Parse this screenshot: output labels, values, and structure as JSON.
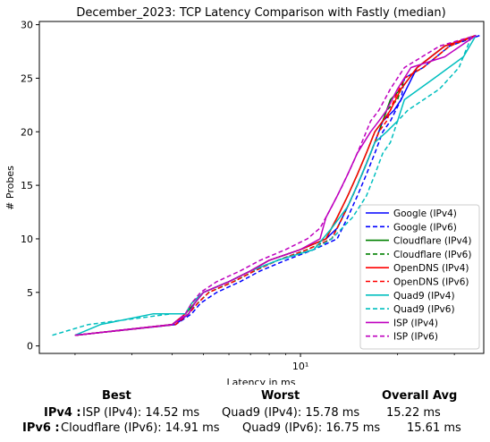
{
  "chart_data": {
    "type": "line",
    "title": "December_2023: TCP Latency Comparison with Fastly (median)",
    "xlabel": "Latency in ms",
    "ylabel": "# Probes",
    "xscale": "log",
    "xlim": [
      1.55,
      37
    ],
    "ylim": [
      -0.7,
      30.3
    ],
    "x_ticks": [
      {
        "value": 10,
        "label": "10¹"
      }
    ],
    "y_ticks": [
      0,
      5,
      10,
      15,
      20,
      25,
      30
    ],
    "legend": "lower-right",
    "grid": false,
    "series": [
      {
        "name": "Google (IPv4)",
        "color": "#0000ff",
        "dash": false,
        "x": [
          2.0,
          4.1,
          4.5,
          4.7,
          5.0,
          6.0,
          7.0,
          8.0,
          10.0,
          12.0,
          13.0,
          14.0,
          15.0,
          16.0,
          17.0,
          18.0,
          19.5,
          20.5,
          23.0,
          28.0,
          35.0
        ],
        "y": [
          1,
          2,
          3,
          4,
          5,
          6,
          7,
          8,
          9,
          10,
          11,
          13,
          15,
          17,
          19,
          21,
          22,
          23,
          26,
          28,
          29
        ]
      },
      {
        "name": "Google (IPv6)",
        "color": "#0000ff",
        "dash": true,
        "x": [
          2.0,
          4.1,
          4.6,
          4.9,
          5.5,
          6.5,
          7.5,
          9.0,
          11.0,
          13.0,
          14.0,
          15.0,
          16.0,
          17.0,
          18.0,
          19.0,
          20.5,
          21.0,
          24.0,
          29.0,
          36.0
        ],
        "y": [
          1,
          2,
          3,
          4,
          5,
          6,
          7,
          8,
          9,
          10,
          12,
          14,
          16,
          18,
          20,
          21,
          23,
          25,
          26,
          28,
          29
        ]
      },
      {
        "name": "Cloudflare (IPv4)",
        "color": "#008000",
        "dash": false,
        "x": [
          2.0,
          4.0,
          4.4,
          4.7,
          5.0,
          6.0,
          7.0,
          8.0,
          10.0,
          12.0,
          13.0,
          14.0,
          15.0,
          16.0,
          17.0,
          18.0,
          19.0,
          20.5,
          23.0,
          28.0,
          35.0
        ],
        "y": [
          1,
          2,
          3,
          4,
          5,
          6,
          7,
          8,
          9,
          10,
          12,
          14,
          16,
          18,
          20,
          21,
          23,
          24,
          26,
          28,
          29
        ]
      },
      {
        "name": "Cloudflare (IPv6)",
        "color": "#008000",
        "dash": true,
        "x": [
          2.0,
          4.0,
          4.5,
          4.8,
          5.2,
          6.2,
          7.2,
          8.5,
          10.5,
          12.5,
          13.5,
          14.5,
          15.5,
          16.5,
          17.5,
          18.5,
          20.0,
          21.0,
          24.0,
          29.0,
          35.0
        ],
        "y": [
          1,
          2,
          3,
          4,
          5,
          6,
          7,
          8,
          9,
          10,
          12,
          14,
          16,
          18,
          20,
          22,
          23,
          25,
          26,
          28,
          29
        ]
      },
      {
        "name": "OpenDNS (IPv4)",
        "color": "#ff0000",
        "dash": false,
        "x": [
          2.0,
          4.0,
          4.4,
          4.6,
          5.0,
          6.0,
          7.0,
          8.0,
          10.0,
          12.0,
          13.0,
          14.0,
          15.0,
          16.0,
          17.0,
          18.0,
          19.0,
          20.5,
          23.0,
          28.0,
          35.0
        ],
        "y": [
          1,
          2,
          3,
          4,
          5,
          6,
          7,
          8,
          9,
          10,
          12,
          14,
          16,
          18,
          20,
          21,
          22,
          24,
          26,
          28,
          29
        ]
      },
      {
        "name": "OpenDNS (IPv6)",
        "color": "#ff0000",
        "dash": true,
        "x": [
          2.0,
          4.1,
          4.5,
          4.8,
          5.2,
          6.2,
          7.2,
          8.5,
          10.5,
          12.5,
          13.5,
          14.5,
          15.5,
          16.5,
          17.5,
          18.5,
          19.5,
          21.0,
          24.0,
          29.0,
          35.0
        ],
        "y": [
          1,
          2,
          3,
          4,
          5,
          6,
          7,
          8,
          9,
          10,
          12,
          14,
          16,
          18,
          20,
          21,
          23,
          25,
          26,
          28,
          29
        ]
      },
      {
        "name": "Quad9 (IPv4)",
        "color": "#00bfbf",
        "dash": false,
        "x": [
          2.0,
          2.4,
          3.5,
          4.4,
          4.6,
          5.0,
          6.0,
          7.0,
          8.5,
          11.0,
          12.5,
          14.0,
          15.0,
          16.0,
          17.0,
          18.5,
          20.0,
          21.0,
          26.0,
          32.0,
          35.0
        ],
        "y": [
          1,
          2,
          3,
          3,
          4,
          5,
          6,
          7,
          8,
          9,
          11,
          13,
          15,
          17,
          19,
          20,
          21,
          23,
          25,
          27,
          29
        ]
      },
      {
        "name": "Quad9 (IPv6)",
        "color": "#00bfbf",
        "dash": true,
        "x": [
          1.7,
          2.2,
          4.0,
          4.4,
          4.6,
          5.0,
          6.0,
          7.0,
          8.5,
          11.0,
          12.5,
          14.5,
          16.0,
          17.0,
          18.0,
          19.0,
          20.0,
          21.5,
          27.0,
          31.0,
          34.0
        ],
        "y": [
          1,
          2,
          3,
          3,
          4,
          5,
          6,
          7,
          8,
          9,
          10,
          12,
          14,
          16,
          18,
          19,
          21,
          22,
          24,
          26,
          29
        ]
      },
      {
        "name": "ISP (IPv4)",
        "color": "#bf00bf",
        "dash": false,
        "x": [
          2.0,
          4.0,
          4.5,
          4.7,
          5.0,
          6.0,
          7.0,
          8.0,
          10.0,
          11.5,
          12.0,
          13.0,
          14.0,
          15.0,
          16.5,
          17.5,
          18.5,
          20.0,
          22.0,
          28.0,
          35.0
        ],
        "y": [
          1,
          2,
          3,
          4,
          5,
          6,
          7,
          8,
          9,
          10,
          12,
          14,
          16,
          18,
          20,
          21,
          22,
          24,
          26,
          27,
          29
        ]
      },
      {
        "name": "ISP (IPv6)",
        "color": "#bf00bf",
        "dash": true,
        "x": [
          2.0,
          4.0,
          4.4,
          4.6,
          4.9,
          5.5,
          6.5,
          7.5,
          9.0,
          10.5,
          11.5,
          12.5,
          13.5,
          14.5,
          15.5,
          16.5,
          17.5,
          19.0,
          21.0,
          27.0,
          35.0
        ],
        "y": [
          1,
          2,
          3,
          4,
          5,
          6,
          7,
          8,
          9,
          10,
          11,
          13,
          15,
          17,
          19,
          21,
          22,
          24,
          26,
          28,
          29
        ]
      }
    ]
  },
  "summary": {
    "headers": {
      "best": "Best",
      "worst": "Worst",
      "avg": "Overall Avg"
    },
    "rows": [
      {
        "label": "IPv4 :",
        "best": "ISP (IPv4): 14.52 ms",
        "worst": "Quad9 (IPv4): 15.78 ms",
        "avg": "15.22 ms"
      },
      {
        "label": "IPv6 :",
        "best": "Cloudflare (IPv6): 14.91 ms",
        "worst": "Quad9 (IPv6): 16.75 ms",
        "avg": "15.61 ms"
      }
    ]
  }
}
